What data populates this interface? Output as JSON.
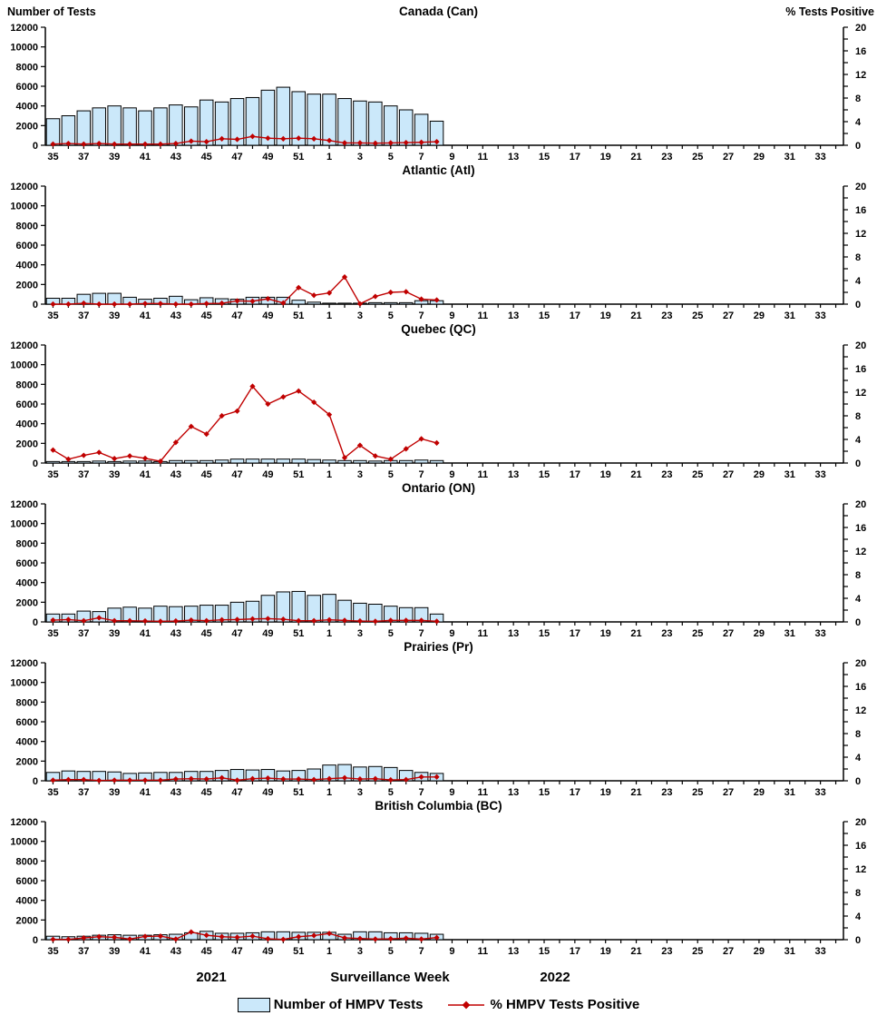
{
  "header": {
    "left_axis_label": "Number of Tests",
    "right_axis_label": "% Tests Positive"
  },
  "footer": {
    "year_left": "2021",
    "xlabel": "Surveillance Week",
    "year_right": "2022",
    "legend": [
      {
        "label": "Number of HMPV Tests",
        "marker": "bar-swatch-icon"
      },
      {
        "label": "% HMPV Tests Positive",
        "marker": "line-diamond-icon"
      }
    ]
  },
  "colors": {
    "bar_fill": "#CBE8FA",
    "bar_stroke": "#000000",
    "line": "#C00000",
    "marker": "#C00000",
    "axis": "#000000"
  },
  "axes": {
    "left_ticks": [
      0,
      2000,
      4000,
      6000,
      8000,
      10000,
      12000
    ],
    "left_ylim": [
      0,
      12000
    ],
    "right_ticks_labeled": [
      0,
      4,
      8,
      12,
      16,
      20
    ],
    "right_minor_step": 2,
    "right_ylim": [
      0,
      20
    ],
    "total_week_slots": 52,
    "x_tick_labels": [
      "35",
      "37",
      "39",
      "41",
      "43",
      "45",
      "47",
      "49",
      "51",
      "1",
      "3",
      "5",
      "7",
      "9",
      "11",
      "13",
      "15",
      "17",
      "19",
      "21",
      "23",
      "25",
      "27",
      "29",
      "31",
      "33"
    ]
  },
  "chart_data": [
    {
      "type": "bar",
      "title": "Canada (Can)",
      "xlabel": "Surveillance Week",
      "x_weeks": [
        35,
        36,
        37,
        38,
        39,
        40,
        41,
        42,
        43,
        44,
        45,
        46,
        47,
        48,
        49,
        50,
        51,
        52,
        1,
        2,
        3,
        4,
        5,
        6,
        7,
        8
      ],
      "left_ylim": [
        0,
        12000
      ],
      "right_ylim": [
        0,
        20
      ],
      "grid": false,
      "series": [
        {
          "name": "Number of HMPV Tests",
          "type": "bar",
          "axis": "left",
          "values": [
            2700,
            3000,
            3500,
            3800,
            4000,
            3800,
            3500,
            3800,
            4100,
            3900,
            4600,
            4400,
            4750,
            4850,
            5600,
            5900,
            5450,
            5200,
            5200,
            4750,
            4500,
            4400,
            4000,
            3600,
            3150,
            2450
          ]
        },
        {
          "name": "% HMPV Tests Positive",
          "type": "line",
          "axis": "right",
          "values": [
            0.2,
            0.3,
            0.2,
            0.3,
            0.2,
            0.2,
            0.2,
            0.2,
            0.3,
            0.7,
            0.6,
            1.1,
            1.0,
            1.5,
            1.2,
            1.1,
            1.2,
            1.1,
            0.8,
            0.4,
            0.4,
            0.35,
            0.4,
            0.45,
            0.5,
            0.6
          ]
        }
      ]
    },
    {
      "type": "bar",
      "title": "Atlantic (Atl)",
      "xlabel": "Surveillance Week",
      "x_weeks": [
        35,
        36,
        37,
        38,
        39,
        40,
        41,
        42,
        43,
        44,
        45,
        46,
        47,
        48,
        49,
        50,
        51,
        52,
        1,
        2,
        3,
        4,
        5,
        6,
        7,
        8
      ],
      "left_ylim": [
        0,
        12000
      ],
      "right_ylim": [
        0,
        20
      ],
      "grid": false,
      "series": [
        {
          "name": "Number of HMPV Tests",
          "type": "bar",
          "axis": "left",
          "values": [
            600,
            600,
            1000,
            1100,
            1100,
            700,
            500,
            600,
            800,
            450,
            650,
            550,
            500,
            700,
            700,
            700,
            400,
            200,
            100,
            100,
            100,
            150,
            150,
            150,
            350,
            350
          ]
        },
        {
          "name": "% HMPV Tests Positive",
          "type": "line",
          "axis": "right",
          "values": [
            0,
            0,
            0.15,
            0,
            0,
            0,
            0.1,
            0.1,
            0,
            0,
            0.1,
            0.15,
            0.55,
            0.5,
            0.9,
            0.2,
            2.8,
            1.5,
            1.9,
            4.6,
            0.05,
            1.3,
            2.0,
            2.1,
            0.85,
            0.7
          ]
        }
      ]
    },
    {
      "type": "bar",
      "title": "Quebec (QC)",
      "xlabel": "Surveillance Week",
      "x_weeks": [
        35,
        36,
        37,
        38,
        39,
        40,
        41,
        42,
        43,
        44,
        45,
        46,
        47,
        48,
        49,
        50,
        51,
        52,
        1,
        2,
        3,
        4,
        5,
        6,
        7,
        8
      ],
      "left_ylim": [
        0,
        12000
      ],
      "right_ylim": [
        0,
        20
      ],
      "grid": false,
      "series": [
        {
          "name": "Number of HMPV Tests",
          "type": "bar",
          "axis": "left",
          "values": [
            150,
            150,
            150,
            200,
            150,
            200,
            200,
            150,
            250,
            250,
            250,
            300,
            400,
            400,
            400,
            400,
            400,
            350,
            300,
            250,
            250,
            200,
            250,
            250,
            300,
            250
          ]
        },
        {
          "name": "% HMPV Tests Positive",
          "type": "line",
          "axis": "right",
          "values": [
            2.2,
            0.65,
            1.3,
            1.8,
            0.75,
            1.2,
            0.8,
            0.3,
            3.5,
            6.2,
            4.9,
            8.0,
            8.8,
            13.0,
            10.0,
            11.2,
            12.2,
            10.3,
            8.2,
            0.9,
            3.0,
            1.2,
            0.65,
            2.4,
            4.1,
            3.4
          ]
        }
      ]
    },
    {
      "type": "bar",
      "title": "Ontario (ON)",
      "xlabel": "Surveillance Week",
      "x_weeks": [
        35,
        36,
        37,
        38,
        39,
        40,
        41,
        42,
        43,
        44,
        45,
        46,
        47,
        48,
        49,
        50,
        51,
        52,
        1,
        2,
        3,
        4,
        5,
        6,
        7,
        8
      ],
      "left_ylim": [
        0,
        12000
      ],
      "right_ylim": [
        0,
        20
      ],
      "grid": false,
      "series": [
        {
          "name": "Number of HMPV Tests",
          "type": "bar",
          "axis": "left",
          "values": [
            800,
            800,
            1100,
            1050,
            1400,
            1500,
            1400,
            1600,
            1550,
            1600,
            1700,
            1700,
            2000,
            2100,
            2700,
            3050,
            3100,
            2700,
            2800,
            2200,
            1900,
            1800,
            1600,
            1450,
            1450,
            800
          ]
        },
        {
          "name": "% HMPV Tests Positive",
          "type": "line",
          "axis": "right",
          "values": [
            0.3,
            0.4,
            0.2,
            0.7,
            0.2,
            0.2,
            0.15,
            0.1,
            0.15,
            0.3,
            0.2,
            0.35,
            0.4,
            0.5,
            0.55,
            0.45,
            0.2,
            0.2,
            0.35,
            0.25,
            0.15,
            0.1,
            0.25,
            0.25,
            0.25,
            0.1
          ]
        }
      ]
    },
    {
      "type": "bar",
      "title": "Prairies (Pr)",
      "xlabel": "Surveillance Week",
      "x_weeks": [
        35,
        36,
        37,
        38,
        39,
        40,
        41,
        42,
        43,
        44,
        45,
        46,
        47,
        48,
        49,
        50,
        51,
        52,
        1,
        2,
        3,
        4,
        5,
        6,
        7,
        8
      ],
      "left_ylim": [
        0,
        12000
      ],
      "right_ylim": [
        0,
        20
      ],
      "grid": false,
      "series": [
        {
          "name": "Number of HMPV Tests",
          "type": "bar",
          "axis": "left",
          "values": [
            850,
            1000,
            950,
            950,
            900,
            750,
            800,
            850,
            850,
            950,
            950,
            1050,
            1150,
            1100,
            1150,
            1000,
            1050,
            1200,
            1600,
            1650,
            1400,
            1450,
            1350,
            1050,
            850,
            750
          ]
        },
        {
          "name": "% HMPV Tests Positive",
          "type": "line",
          "axis": "right",
          "values": [
            0.1,
            0.2,
            0.2,
            0.05,
            0.1,
            0.1,
            0.1,
            0.1,
            0.3,
            0.35,
            0.3,
            0.5,
            0.1,
            0.35,
            0.45,
            0.3,
            0.3,
            0.2,
            0.35,
            0.5,
            0.3,
            0.35,
            0.15,
            0.2,
            0.65,
            0.65
          ]
        }
      ]
    },
    {
      "type": "bar",
      "title": "British Columbia (BC)",
      "xlabel": "Surveillance Week",
      "x_weeks": [
        35,
        36,
        37,
        38,
        39,
        40,
        41,
        42,
        43,
        44,
        45,
        46,
        47,
        48,
        49,
        50,
        51,
        52,
        1,
        2,
        3,
        4,
        5,
        6,
        7,
        8
      ],
      "left_ylim": [
        0,
        12000
      ],
      "right_ylim": [
        0,
        20
      ],
      "grid": false,
      "series": [
        {
          "name": "Number of HMPV Tests",
          "type": "bar",
          "axis": "left",
          "values": [
            350,
            300,
            350,
            450,
            500,
            450,
            450,
            500,
            550,
            700,
            850,
            650,
            650,
            700,
            800,
            800,
            750,
            750,
            750,
            550,
            800,
            800,
            700,
            700,
            650,
            550
          ]
        },
        {
          "name": "% HMPV Tests Positive",
          "type": "line",
          "axis": "right",
          "values": [
            0.05,
            0.05,
            0.3,
            0.5,
            0.4,
            0.1,
            0.55,
            0.6,
            0.1,
            1.3,
            0.75,
            0.5,
            0.4,
            0.6,
            0.15,
            0.05,
            0.5,
            0.7,
            1.05,
            0.3,
            0.2,
            0.1,
            0.15,
            0.25,
            0.1,
            0.35
          ]
        }
      ]
    }
  ]
}
